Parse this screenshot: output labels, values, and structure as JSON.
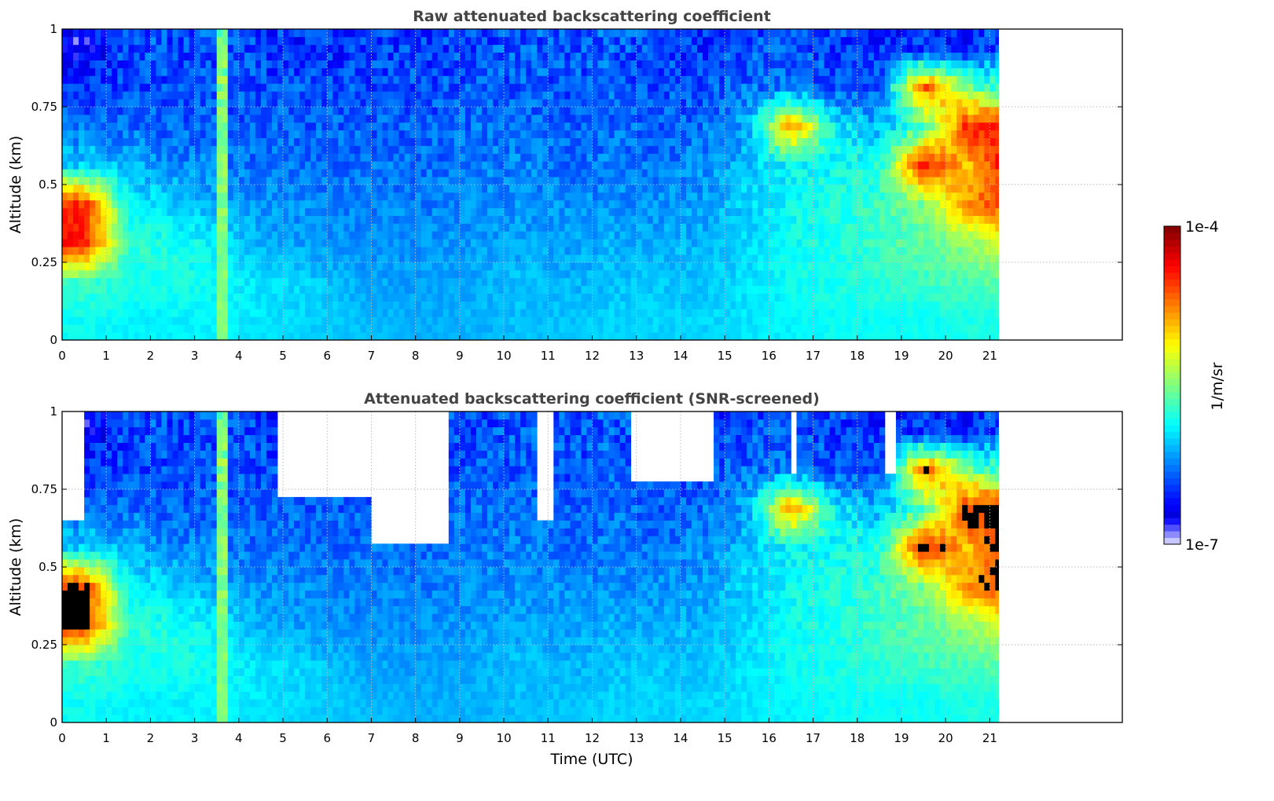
{
  "chart_data": [
    {
      "type": "heatmap",
      "title": "Raw attenuated backscattering coefficient",
      "xlabel": "",
      "ylabel": "Altitude (km)",
      "xlim": [
        0,
        24
      ],
      "ylim": [
        0,
        1
      ],
      "xticks": [
        "0",
        "1",
        "2",
        "3",
        "4",
        "5",
        "6",
        "7",
        "8",
        "9",
        "10",
        "11",
        "12",
        "13",
        "14",
        "15",
        "16",
        "17",
        "18",
        "19",
        "20",
        "21"
      ],
      "yticks": [
        "0",
        "0.25",
        "0.5",
        "0.75",
        "1"
      ],
      "ytick_values": [
        0,
        0.25,
        0.5,
        0.75,
        1
      ],
      "grid": true,
      "data_end_hour": 21.2,
      "value_units": "log10(1/m/sr)",
      "time_bins_hours": "hourly centers 0.5..21.5",
      "altitude_bins_km": [
        0.0625,
        0.1875,
        0.3125,
        0.4375,
        0.5625,
        0.6875,
        0.8125,
        0.9375
      ],
      "log10_values_by_altitude": [
        [
          -5.85,
          -5.9,
          -5.9,
          -5.9,
          -5.95,
          -6.0,
          -6.05,
          -6.1,
          -6.1,
          -6.1,
          -6.05,
          -6.05,
          -6.0,
          -6.0,
          -6.0,
          -5.95,
          -5.9,
          -5.85,
          -5.85,
          -5.85,
          -5.8,
          -5.8
        ],
        [
          -5.7,
          -5.8,
          -5.8,
          -5.85,
          -5.95,
          -6.0,
          -6.1,
          -6.15,
          -6.15,
          -6.1,
          -6.05,
          -6.1,
          -6.05,
          -6.05,
          -6.05,
          -5.95,
          -5.85,
          -5.8,
          -5.75,
          -5.7,
          -5.65,
          -5.55
        ],
        [
          -4.4,
          -5.75,
          -5.8,
          -5.9,
          -6.1,
          -6.15,
          -6.2,
          -6.2,
          -6.2,
          -6.15,
          -6.15,
          -6.15,
          -6.1,
          -6.1,
          -6.1,
          -6.0,
          -5.85,
          -5.8,
          -5.7,
          -5.6,
          -5.45,
          -5.2
        ],
        [
          -4.5,
          -5.9,
          -6.0,
          -6.1,
          -6.2,
          -6.2,
          -6.25,
          -6.25,
          -6.25,
          -6.2,
          -6.2,
          -6.2,
          -6.2,
          -6.2,
          -6.15,
          -6.0,
          -5.85,
          -5.8,
          -5.7,
          -5.5,
          -4.8,
          -4.5
        ],
        [
          -6.0,
          -6.1,
          -6.2,
          -6.25,
          -6.3,
          -6.3,
          -6.3,
          -6.3,
          -6.3,
          -6.25,
          -6.25,
          -6.3,
          -6.25,
          -6.3,
          -6.2,
          -6.05,
          -5.9,
          -5.85,
          -5.8,
          -4.4,
          -5.0,
          -4.3
        ],
        [
          -6.3,
          -6.3,
          -6.35,
          -6.35,
          -6.35,
          -6.35,
          -6.35,
          -6.35,
          -6.35,
          -6.3,
          -6.3,
          -6.35,
          -6.3,
          -6.35,
          -6.3,
          -6.15,
          -4.8,
          -5.9,
          -6.1,
          -5.7,
          -4.5,
          -4.4
        ],
        [
          -6.5,
          -6.4,
          -6.4,
          -6.4,
          -6.4,
          -6.4,
          -6.4,
          -6.4,
          -6.4,
          -6.35,
          -6.35,
          -6.4,
          -6.35,
          -6.4,
          -6.4,
          -6.3,
          -6.3,
          -6.35,
          -6.4,
          -4.6,
          -5.5,
          -5.8
        ],
        [
          -6.7,
          -6.4,
          -6.4,
          -6.4,
          -6.45,
          -6.5,
          -6.5,
          -6.45,
          -6.45,
          -6.4,
          -6.35,
          -6.4,
          -6.35,
          -6.45,
          -6.5,
          -6.4,
          -6.4,
          -6.45,
          -6.5,
          -6.5,
          -6.5,
          -6.4
        ]
      ],
      "stripes": [
        {
          "t0": 3.45,
          "t1": 3.75,
          "log10_value": -5.5
        }
      ],
      "masked_regions": []
    },
    {
      "type": "heatmap",
      "title": "Attenuated backscattering coefficient (SNR-screened)",
      "xlabel": "Time (UTC)",
      "ylabel": "Altitude (km)",
      "xlim": [
        0,
        24
      ],
      "ylim": [
        0,
        1
      ],
      "xticks": [
        "0",
        "1",
        "2",
        "3",
        "4",
        "5",
        "6",
        "7",
        "8",
        "9",
        "10",
        "11",
        "12",
        "13",
        "14",
        "15",
        "16",
        "17",
        "18",
        "19",
        "20",
        "21"
      ],
      "yticks": [
        "0",
        "0.25",
        "0.5",
        "0.75",
        "1"
      ],
      "ytick_values": [
        0,
        0.25,
        0.5,
        0.75,
        1
      ],
      "grid": true,
      "data_end_hour": 21.2,
      "same_values_as": "raw",
      "saturated_above_log10": -4.6,
      "saturated_color": "#000000",
      "masked_regions": [
        {
          "t0": 0.0,
          "t1": 0.55,
          "z0": 0.65,
          "z1": 1.0
        },
        {
          "t0": 4.9,
          "t1": 7.0,
          "z0": 0.72,
          "z1": 1.0
        },
        {
          "t0": 7.0,
          "t1": 8.8,
          "z0": 0.58,
          "z1": 1.0
        },
        {
          "t0": 10.7,
          "t1": 11.1,
          "z0": 0.65,
          "z1": 1.0
        },
        {
          "t0": 12.9,
          "t1": 14.7,
          "z0": 0.78,
          "z1": 1.0
        },
        {
          "t0": 16.5,
          "t1": 16.6,
          "z0": 0.8,
          "z1": 1.0
        },
        {
          "t0": 18.6,
          "t1": 18.9,
          "z0": 0.8,
          "z1": 1.0
        }
      ]
    }
  ],
  "colorbar": {
    "label": "1/m/sr",
    "max_label": "1e-4",
    "min_label": "1e-7",
    "log10_range": [
      -7,
      -4
    ],
    "colormap": "jet"
  }
}
